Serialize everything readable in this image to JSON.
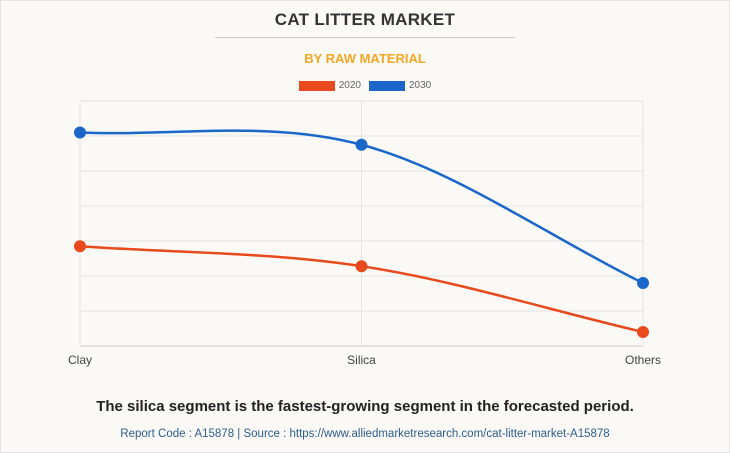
{
  "header": {
    "title": "CAT LITTER MARKET",
    "subtitle": "BY RAW MATERIAL"
  },
  "footer": {
    "caption": "The silica segment is the fastest-growing segment in the forecasted period.",
    "source": "Report Code : A15878  |  Source : https://www.alliedmarketresearch.com/cat-litter-market-A15878"
  },
  "colors": {
    "series_2020": "#e8491d",
    "series_2030": "#1a66c9",
    "title": "#333333",
    "subtitle": "#f5a623",
    "grid": "#e3e3e3"
  },
  "chart_data": {
    "type": "line",
    "title": "CAT LITTER MARKET",
    "subtitle": "BY RAW MATERIAL",
    "categories": [
      "Clay",
      "Silica",
      "Others"
    ],
    "series": [
      {
        "name": "2020",
        "values": [
          28.5,
          22.8,
          4.0
        ]
      },
      {
        "name": "2030",
        "values": [
          61.0,
          57.5,
          18.0
        ]
      }
    ],
    "ylim": [
      0,
      70
    ],
    "yticks": [
      0,
      10,
      20,
      30,
      40,
      50,
      60,
      70
    ],
    "y_tick_labels_shown": false,
    "xlabel": "",
    "ylabel": "",
    "grid": true,
    "legend_position": "top-center",
    "smooth": true
  }
}
